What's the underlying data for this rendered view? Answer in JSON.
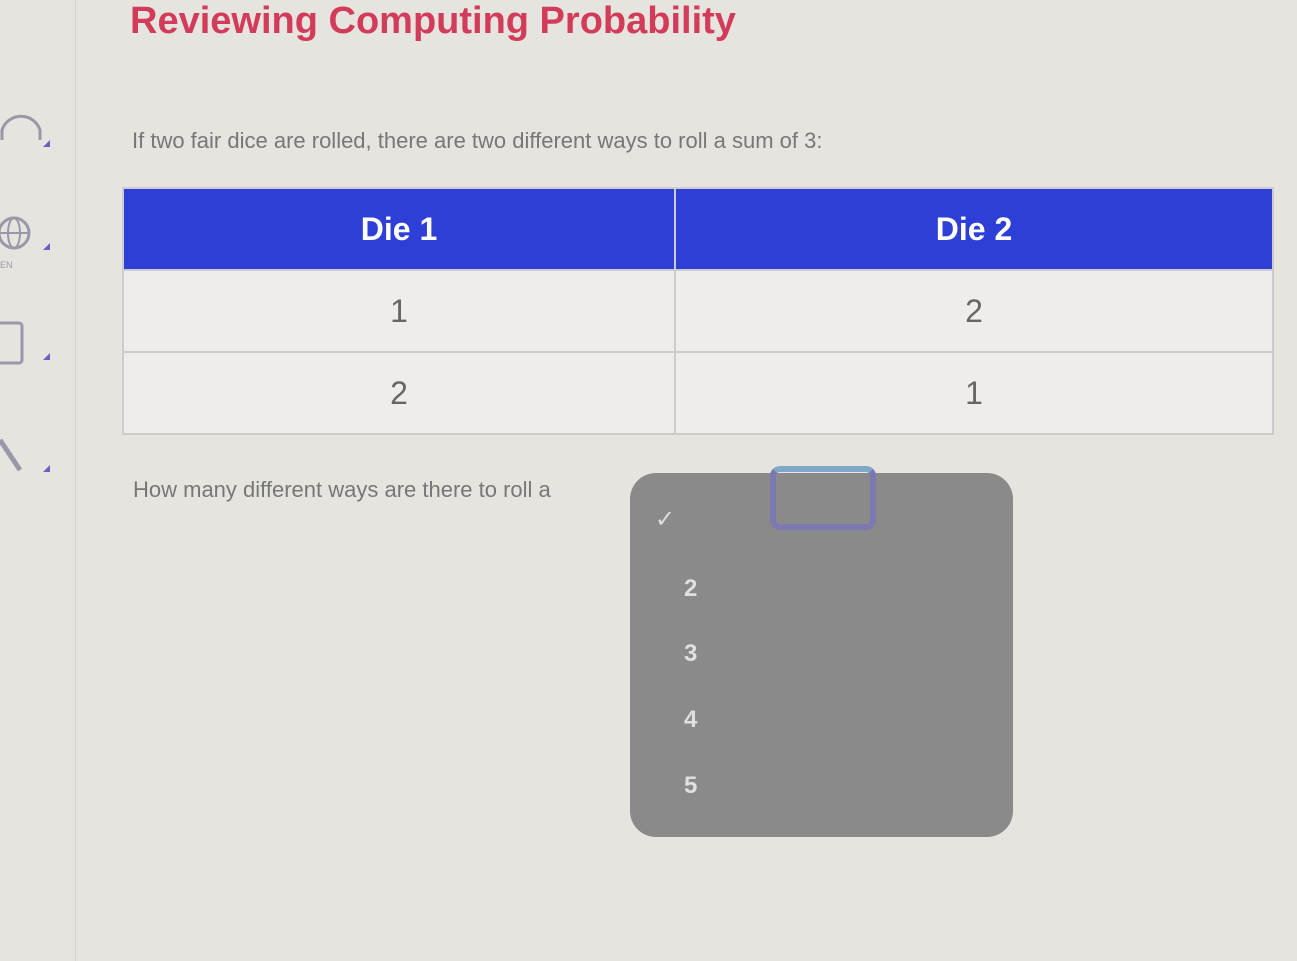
{
  "title": "Reviewing Computing Probability",
  "intro": "If two fair dice are rolled, there are two different ways to roll a sum of 3:",
  "table": {
    "headers": [
      "Die 1",
      "Die 2"
    ],
    "rows": [
      [
        "1",
        "2"
      ],
      [
        "2",
        "1"
      ]
    ]
  },
  "question": "How many different ways are there to roll a",
  "dropdown": {
    "selected": "",
    "options": [
      "2",
      "3",
      "4",
      "5"
    ]
  },
  "sidebar": {
    "icons": [
      "headphones-icon",
      "globe-language-icon",
      "calculator-icon",
      "tools-icon"
    ],
    "globe_label": "EN"
  },
  "colors": {
    "title": "#d23c5a",
    "header": "#2e3fd8"
  }
}
